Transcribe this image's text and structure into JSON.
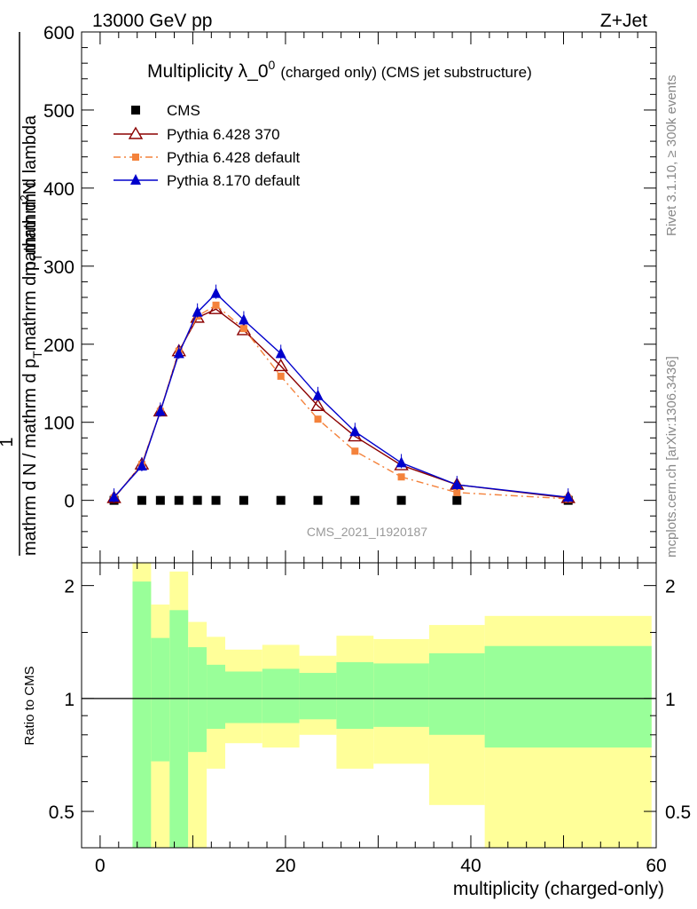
{
  "header": {
    "left": "13000 GeV pp",
    "right": "Z+Jet"
  },
  "side_labels": {
    "rivet": "Rivet 3.1.10, ≥ 300k events",
    "mcplots": "mcplots.cern.ch [arXiv:1306.3436]"
  },
  "chart_data": [
    {
      "type": "line",
      "title": "Multiplicity λ_0⁰ (charged only) (CMS jet substructure)",
      "title_main": "Multiplicity λ_0",
      "title_sup": "0",
      "title_sub": "(charged only) (CMS jet substructure)",
      "ylabel_numerator": "1",
      "ylabel_denominator": "mathrm d N / mathrm d p_T mathrm d p_T mathrm d lambda",
      "ylabel_top": "mathrm d²N",
      "ylabel_top_parts": [
        "mathrm d",
        "2",
        "N"
      ],
      "ylabel_denom_parts": [
        "mathrm d N / mathrm d p",
        "T",
        "mathrm d p",
        "T",
        "mathrm d lambda"
      ],
      "ylabel_top_raw": "mathrm d²N",
      "watermark": "CMS_2021_I1920187",
      "xlim": [
        -2,
        60
      ],
      "ylim": [
        -80,
        600
      ],
      "yticks": [
        0,
        100,
        200,
        300,
        400,
        500,
        600
      ],
      "series": [
        {
          "name": "CMS",
          "color": "#000000",
          "marker": "square",
          "x": [
            1.5,
            4.5,
            6.5,
            8.5,
            10.5,
            12.5,
            15.5,
            19.5,
            23.5,
            27.5,
            32.5,
            38.5,
            50.5
          ],
          "y": [
            0,
            0,
            0,
            0,
            0,
            0,
            0,
            0,
            0,
            0,
            0,
            0,
            0
          ]
        },
        {
          "name": "Pythia 6.428 370",
          "color": "#8b0000",
          "marker": "open-triangle",
          "x": [
            1.5,
            4.5,
            6.5,
            8.5,
            10.5,
            12.5,
            15.5,
            19.5,
            23.5,
            27.5,
            32.5,
            38.5,
            50.5
          ],
          "y": [
            3,
            46,
            114,
            191,
            234,
            245,
            218,
            172,
            121,
            82,
            45,
            20,
            3
          ]
        },
        {
          "name": "Pythia 6.428 default",
          "color": "#f4823b",
          "marker": "filled-square",
          "x": [
            1.5,
            4.5,
            6.5,
            8.5,
            10.5,
            12.5,
            15.5,
            19.5,
            23.5,
            27.5,
            32.5,
            38.5,
            50.5
          ],
          "y": [
            3,
            46,
            114,
            191,
            236,
            250,
            220,
            159,
            104,
            63,
            30,
            10,
            2
          ]
        },
        {
          "name": "Pythia 8.170 default",
          "color": "#0000cc",
          "marker": "filled-triangle",
          "x": [
            1.5,
            4.5,
            6.5,
            8.5,
            10.5,
            12.5,
            15.5,
            19.5,
            23.5,
            27.5,
            32.5,
            38.5,
            50.5
          ],
          "y": [
            4,
            44,
            114,
            188,
            241,
            265,
            231,
            188,
            134,
            88,
            48,
            20,
            4
          ]
        }
      ]
    },
    {
      "type": "area",
      "ylabel": "Ratio to CMS",
      "xlabel": "multiplicity (charged-only)",
      "xlim": [
        -2,
        60
      ],
      "ylim": [
        0.4,
        2.3
      ],
      "yscale": "log",
      "yticks": [
        0.5,
        1,
        2
      ],
      "ytick_labels": [
        "0.5",
        "1",
        "2"
      ],
      "xticks": [
        0,
        20,
        40,
        60
      ],
      "xtick_labels": [
        "0",
        "20",
        "40",
        "60"
      ],
      "bins": [
        {
          "lo": 3.5,
          "hi": 5.5,
          "green_lo": 0.2,
          "green_hi": 2.05,
          "yellow_lo": 0.2,
          "yellow_hi": 2.3
        },
        {
          "lo": 5.5,
          "hi": 7.5,
          "green_lo": 0.68,
          "green_hi": 1.45,
          "yellow_lo": 0.2,
          "yellow_hi": 1.78
        },
        {
          "lo": 7.5,
          "hi": 9.5,
          "green_lo": 0.3,
          "green_hi": 1.72,
          "yellow_lo": 0.2,
          "yellow_hi": 2.18
        },
        {
          "lo": 9.5,
          "hi": 11.5,
          "green_lo": 0.72,
          "green_hi": 1.37,
          "yellow_lo": 0.38,
          "yellow_hi": 1.6
        },
        {
          "lo": 11.5,
          "hi": 13.5,
          "green_lo": 0.83,
          "green_hi": 1.23,
          "yellow_lo": 0.65,
          "yellow_hi": 1.46
        },
        {
          "lo": 13.5,
          "hi": 17.5,
          "green_lo": 0.86,
          "green_hi": 1.18,
          "yellow_lo": 0.76,
          "yellow_hi": 1.35
        },
        {
          "lo": 17.5,
          "hi": 21.5,
          "green_lo": 0.86,
          "green_hi": 1.2,
          "yellow_lo": 0.74,
          "yellow_hi": 1.39
        },
        {
          "lo": 21.5,
          "hi": 25.5,
          "green_lo": 0.88,
          "green_hi": 1.17,
          "yellow_lo": 0.8,
          "yellow_hi": 1.3
        },
        {
          "lo": 25.5,
          "hi": 29.5,
          "green_lo": 0.83,
          "green_hi": 1.25,
          "yellow_lo": 0.65,
          "yellow_hi": 1.47
        },
        {
          "lo": 29.5,
          "hi": 35.5,
          "green_lo": 0.84,
          "green_hi": 1.24,
          "yellow_lo": 0.67,
          "yellow_hi": 1.44
        },
        {
          "lo": 35.5,
          "hi": 41.5,
          "green_lo": 0.8,
          "green_hi": 1.32,
          "yellow_lo": 0.52,
          "yellow_hi": 1.57
        },
        {
          "lo": 41.5,
          "hi": 59.5,
          "green_lo": 0.74,
          "green_hi": 1.38,
          "yellow_lo": 0.2,
          "yellow_hi": 1.66
        }
      ]
    }
  ]
}
